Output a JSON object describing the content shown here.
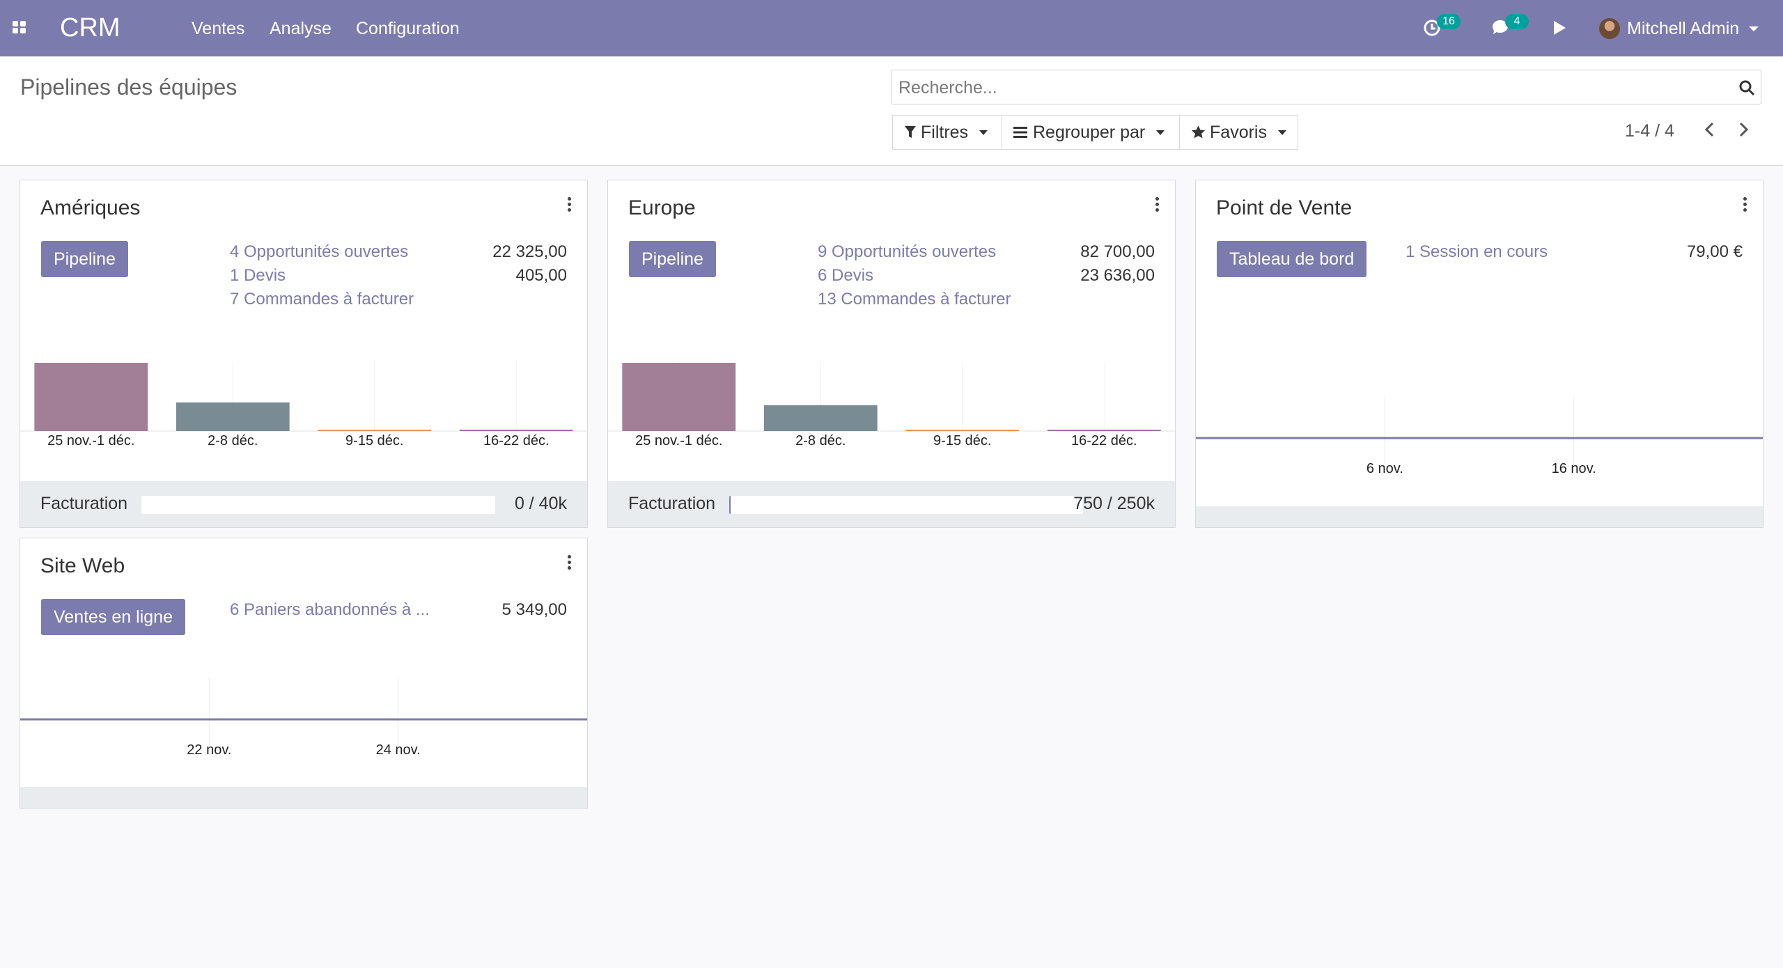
{
  "navbar": {
    "brand": "CRM",
    "menu": [
      "Ventes",
      "Analyse",
      "Configuration"
    ],
    "activity_count": "16",
    "message_count": "4",
    "user_name": "Mitchell Admin"
  },
  "control_panel": {
    "title": "Pipelines des équipes",
    "search_placeholder": "Recherche...",
    "filters_label": "Filtres",
    "group_by_label": "Regrouper par",
    "favorites_label": "Favoris",
    "pager": "1-4 / 4"
  },
  "colors": {
    "brand": "#7c7bad",
    "accent_teal": "#00a09d",
    "bar_past": "#a27e97",
    "bar_current": "#798b93",
    "bar_future_orange": "#e8915f",
    "bar_future_purple": "#a16fa4"
  },
  "cards": [
    {
      "title": "Amériques",
      "button": "Pipeline",
      "stats": [
        {
          "label": "4 Opportunités ouvertes",
          "value": "22 325,00"
        },
        {
          "label": "1 Devis",
          "value": "405,00"
        },
        {
          "label": "7 Commandes à facturer",
          "value": ""
        }
      ],
      "footer_label": "Facturation",
      "footer_value": "0 / 40k",
      "progress": 0
    },
    {
      "title": "Europe",
      "button": "Pipeline",
      "stats": [
        {
          "label": "9 Opportunités ouvertes",
          "value": "82 700,00"
        },
        {
          "label": "6 Devis",
          "value": "23 636,00"
        },
        {
          "label": "13 Commandes à facturer",
          "value": ""
        }
      ],
      "footer_label": "Facturation",
      "footer_value": "750 / 250k",
      "progress": 0.003
    },
    {
      "title": "Point de Vente",
      "button": "Tableau de bord",
      "stats": [
        {
          "label": "1 Session en cours",
          "value": "79,00 €"
        }
      ]
    },
    {
      "title": "Site Web",
      "button": "Ventes en ligne",
      "stats": [
        {
          "label": "6 Paniers abandonnés à ...",
          "value": "5 349,00"
        }
      ]
    }
  ],
  "chart_data": [
    {
      "type": "bar",
      "categories": [
        "25 nov.-1 déc.",
        "2-8 déc.",
        "9-15 déc.",
        "16-22 déc."
      ],
      "values": [
        100,
        42,
        1,
        1
      ],
      "ylim": [
        0,
        100
      ],
      "bar_colors": [
        "#a27e97",
        "#798b93",
        "#e8915f",
        "#a16fa4"
      ]
    },
    {
      "type": "bar",
      "categories": [
        "25 nov.-1 déc.",
        "2-8 déc.",
        "9-15 déc.",
        "16-22 déc."
      ],
      "values": [
        100,
        38,
        1,
        1
      ],
      "ylim": [
        0,
        100
      ],
      "bar_colors": [
        "#a27e97",
        "#798b93",
        "#e8915f",
        "#a16fa4"
      ]
    },
    {
      "type": "line",
      "x": [
        "6 nov.",
        "16 nov."
      ],
      "values": [
        0,
        0
      ],
      "ylim": [
        0,
        1
      ]
    },
    {
      "type": "line",
      "x": [
        "22 nov.",
        "24 nov."
      ],
      "values": [
        0,
        0
      ],
      "ylim": [
        0,
        1
      ]
    }
  ]
}
